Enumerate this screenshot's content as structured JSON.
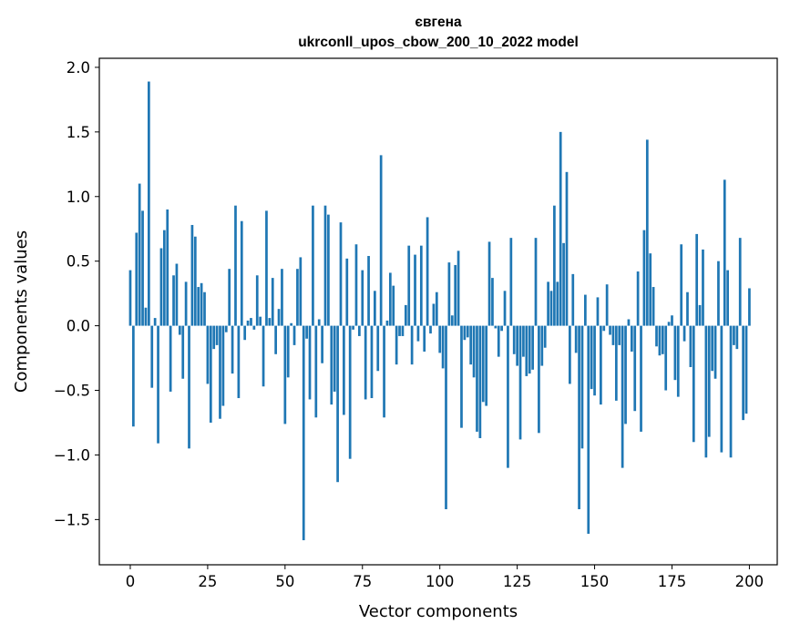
{
  "chart_data": {
    "type": "bar",
    "title": "євгена",
    "subtitle": "ukrconll_upos_cbow_200_10_2022 model",
    "xlabel": "Vector components",
    "ylabel": "Components values",
    "xlim": [
      -10,
      209
    ],
    "ylim": [
      -1.85,
      2.07
    ],
    "bar_color": "#1f77b4",
    "x_ticks": [
      0,
      25,
      50,
      75,
      100,
      125,
      150,
      175,
      200
    ],
    "y_ticks": [
      -1.5,
      -1.0,
      -0.5,
      0.0,
      0.5,
      1.0,
      1.5,
      2.0
    ],
    "x_tick_labels": [
      "0",
      "25",
      "50",
      "75",
      "100",
      "125",
      "150",
      "175",
      "200"
    ],
    "y_tick_labels": [
      "−1.5",
      "−1.0",
      "−0.5",
      "0.0",
      "0.5",
      "1.0",
      "1.5",
      "2.0"
    ],
    "values": [
      0.43,
      -0.78,
      0.72,
      1.1,
      0.89,
      0.14,
      1.89,
      -0.48,
      0.06,
      -0.91,
      0.6,
      0.74,
      0.9,
      -0.51,
      0.39,
      0.48,
      -0.07,
      -0.41,
      0.34,
      -0.95,
      0.78,
      0.69,
      0.3,
      0.33,
      0.26,
      -0.45,
      -0.75,
      -0.18,
      -0.15,
      -0.72,
      -0.62,
      -0.05,
      0.44,
      -0.37,
      0.93,
      -0.56,
      0.81,
      -0.11,
      0.04,
      0.06,
      -0.03,
      0.39,
      0.07,
      -0.47,
      0.89,
      0.06,
      0.37,
      -0.22,
      0.13,
      0.44,
      -0.76,
      -0.4,
      0.02,
      -0.15,
      0.44,
      0.53,
      -1.66,
      -0.1,
      -0.57,
      0.93,
      -0.71,
      0.05,
      -0.29,
      0.93,
      0.86,
      -0.61,
      -0.51,
      -1.21,
      0.8,
      -0.69,
      0.52,
      -1.03,
      -0.03,
      0.63,
      -0.08,
      0.43,
      -0.57,
      0.54,
      -0.56,
      0.27,
      -0.35,
      1.32,
      -0.71,
      0.04,
      0.41,
      0.31,
      -0.3,
      -0.08,
      -0.08,
      0.16,
      0.62,
      -0.3,
      0.55,
      -0.12,
      0.62,
      -0.2,
      0.84,
      -0.06,
      0.17,
      0.26,
      -0.21,
      -0.33,
      -1.42,
      0.49,
      0.08,
      0.47,
      0.58,
      -0.79,
      -0.11,
      -0.09,
      -0.3,
      -0.4,
      -0.82,
      -0.87,
      -0.59,
      -0.62,
      0.65,
      0.37,
      -0.02,
      -0.24,
      -0.04,
      0.27,
      -1.1,
      0.68,
      -0.22,
      -0.31,
      -0.88,
      -0.24,
      -0.39,
      -0.37,
      -0.34,
      0.68,
      -0.83,
      -0.31,
      -0.17,
      0.34,
      0.27,
      0.93,
      0.34,
      1.5,
      0.64,
      1.19,
      -0.45,
      0.4,
      -0.21,
      -1.42,
      -0.95,
      0.24,
      -1.61,
      -0.49,
      -0.54,
      0.22,
      -0.61,
      -0.04,
      0.32,
      -0.07,
      -0.15,
      -0.58,
      -0.15,
      -1.1,
      -0.76,
      0.05,
      -0.2,
      -0.66,
      0.42,
      -0.82,
      0.74,
      1.44,
      0.56,
      0.3,
      -0.16,
      -0.23,
      -0.22,
      -0.5,
      0.03,
      0.08,
      -0.42,
      -0.55,
      0.63,
      -0.12,
      0.26,
      -0.32,
      -0.9,
      0.71,
      0.16,
      0.59,
      -1.02,
      -0.86,
      -0.35,
      -0.41,
      0.5,
      -0.98,
      1.13,
      0.43,
      -1.02,
      -0.15,
      -0.18,
      0.68,
      -0.73,
      -0.68,
      0.29
    ]
  }
}
